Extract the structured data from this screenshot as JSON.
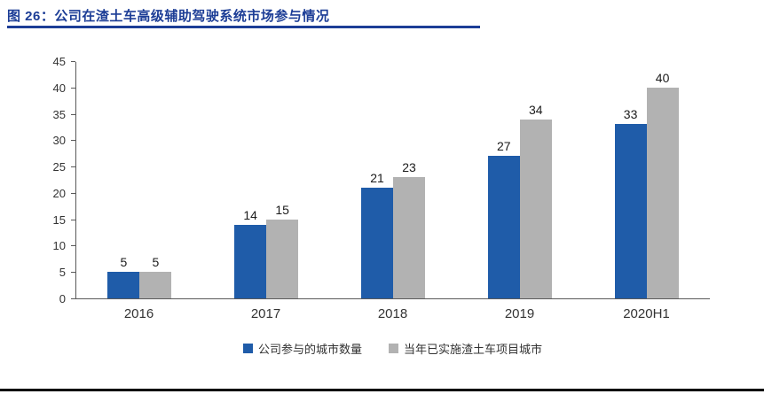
{
  "header": {
    "title": "图 26：公司在渣土车高级辅助驾驶系统市场参与情况",
    "accent_color": "#1c3d96"
  },
  "chart_data": {
    "type": "bar",
    "title": "",
    "xlabel": "",
    "ylabel": "",
    "categories": [
      "2016",
      "2017",
      "2018",
      "2019",
      "2020H1"
    ],
    "series": [
      {
        "name": "公司参与的城市数量",
        "color": "#1f5ca9",
        "values": [
          5,
          14,
          21,
          27,
          33
        ]
      },
      {
        "name": "当年已实施渣土车项目城市",
        "color": "#b2b2b2",
        "values": [
          5,
          15,
          23,
          34,
          40
        ]
      }
    ],
    "ylim": [
      0,
      45
    ],
    "ytick": 5,
    "grid": false,
    "legend_position": "bottom",
    "data_labels": true
  }
}
